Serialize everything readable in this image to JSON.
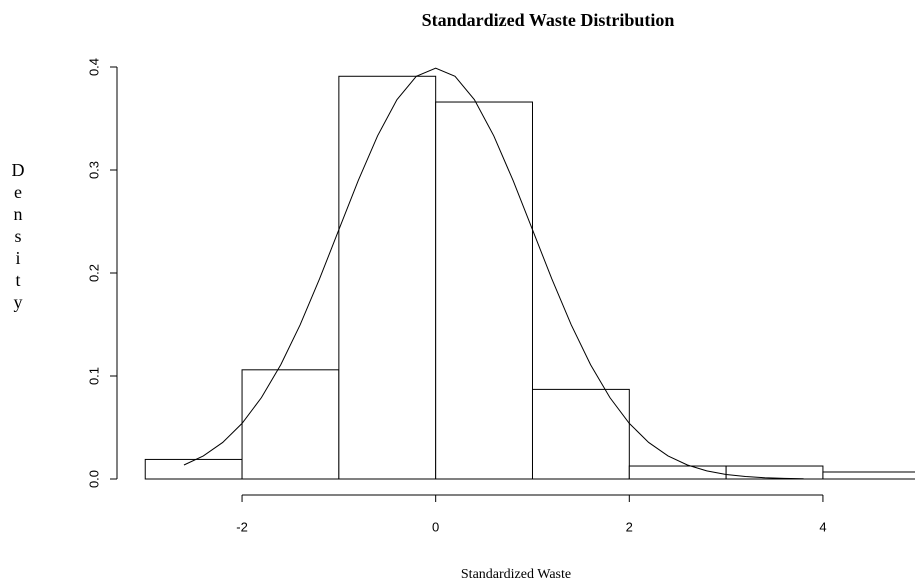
{
  "chart_data": {
    "type": "histogram",
    "title": "Standardized Waste Distribution",
    "x_label": "Standardized Waste",
    "y_label": "Density",
    "bins": [
      -3,
      -2,
      -1,
      0,
      1,
      2,
      3,
      4,
      5
    ],
    "values": [
      0.019,
      0.106,
      0.391,
      0.366,
      0.087,
      0.0126,
      0.0126,
      0.0068
    ],
    "color": "#ffffff",
    "curve": {
      "x": [
        -2.6,
        -2.4,
        -2.2,
        -2.0,
        -1.8,
        -1.6,
        -1.4,
        -1.2,
        -1.0,
        -0.8,
        -0.6,
        -0.4,
        -0.2,
        0,
        0.2,
        0.4,
        0.6,
        0.8,
        1.0,
        1.2,
        1.4,
        1.6,
        1.8,
        2.0,
        2.2,
        2.4,
        2.6,
        2.8,
        3.0,
        3.2,
        3.4,
        3.6,
        3.8
      ],
      "values": [
        0.0136,
        0.0224,
        0.0355,
        0.054,
        0.079,
        0.1109,
        0.1497,
        0.1942,
        0.242,
        0.2897,
        0.3332,
        0.3683,
        0.391,
        0.3989,
        0.391,
        0.3683,
        0.3332,
        0.2897,
        0.242,
        0.1942,
        0.1497,
        0.1109,
        0.079,
        0.054,
        0.0355,
        0.0224,
        0.0136,
        0.0079,
        0.0044,
        0.0024,
        0.0012,
        0.0006,
        0.0003
      ],
      "color": "#000000"
    },
    "xlim": [
      -3.24,
      4.92
    ],
    "xticks": [
      -2,
      0,
      2,
      4
    ],
    "ylim": [
      0,
      0.4
    ],
    "yticks": [
      {
        "value": 0,
        "label": "0.0"
      },
      0.1,
      0.2,
      0.3,
      0.4
    ]
  }
}
